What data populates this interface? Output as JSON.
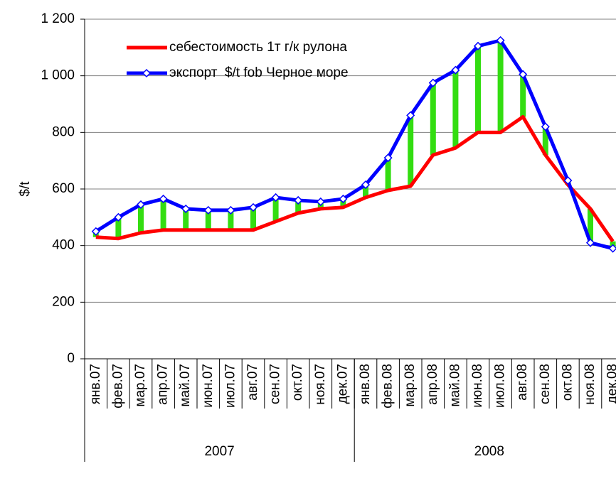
{
  "chart_data": {
    "type": "line",
    "y_label": "$/t",
    "categories": [
      "янв.07",
      "фев.07",
      "мар.07",
      "апр.07",
      "май.07",
      "июн.07",
      "июл.07",
      "авг.07",
      "сен.07",
      "окт.07",
      "ноя.07",
      "дек.07",
      "янв.08",
      "фев.08",
      "мар.08",
      "апр.08",
      "май.08",
      "июн.08",
      "июл.08",
      "авг.08",
      "сен.08",
      "окт.08",
      "ноя.08",
      "дек.08"
    ],
    "category_groups": [
      "2007",
      "2008"
    ],
    "series": [
      {
        "name": "себестоимость 1т г/к рулона",
        "color": "#ff0000",
        "values": [
          430,
          425,
          445,
          455,
          455,
          455,
          455,
          455,
          485,
          515,
          530,
          535,
          570,
          595,
          610,
          720,
          745,
          800,
          800,
          855,
          720,
          615,
          530,
          415
        ]
      },
      {
        "name": "экспорт  $/t fob Черное море",
        "color": "#0000ff",
        "values": [
          450,
          500,
          545,
          565,
          530,
          525,
          525,
          535,
          570,
          560,
          555,
          565,
          615,
          710,
          860,
          975,
          1020,
          1105,
          1125,
          1005,
          820,
          630,
          410,
          390
        ]
      }
    ],
    "difference_color": "#33dd11",
    "ylim": [
      0,
      1200
    ],
    "yticks": [
      0,
      200,
      400,
      600,
      800,
      {
        "value": 1000,
        "label": "1 000"
      },
      {
        "value": 1200,
        "label": "1 200"
      }
    ],
    "grid": true,
    "legend": "top-left"
  }
}
